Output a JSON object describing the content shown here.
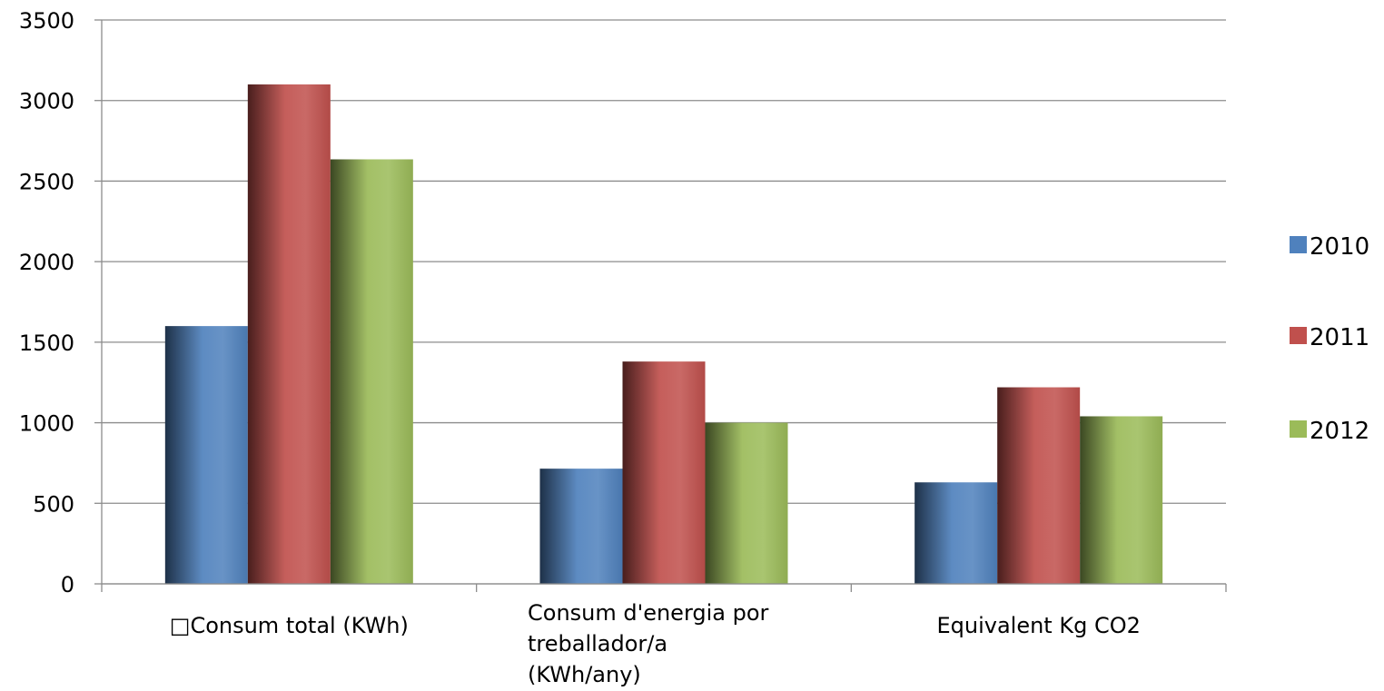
{
  "chart_data": {
    "type": "bar",
    "categories": [
      [
        "□Consum total (KWh)"
      ],
      [
        "Consum d'energia por",
        "treballador/a",
        "(KWh/any)"
      ],
      [
        "Equivalent Kg CO2"
      ]
    ],
    "series": [
      {
        "name": "2010",
        "values": [
          1600,
          715,
          630
        ],
        "color": "#4f81bd"
      },
      {
        "name": "2011",
        "values": [
          3100,
          1380,
          1220
        ],
        "color": "#c0504d"
      },
      {
        "name": "2012",
        "values": [
          2635,
          1000,
          1040
        ],
        "color": "#9bbb59"
      }
    ],
    "ylim": [
      0,
      3500
    ],
    "yticks": [
      0,
      500,
      1000,
      1500,
      2000,
      2500,
      3000,
      3500
    ],
    "grid": true,
    "legend_position": "right"
  }
}
